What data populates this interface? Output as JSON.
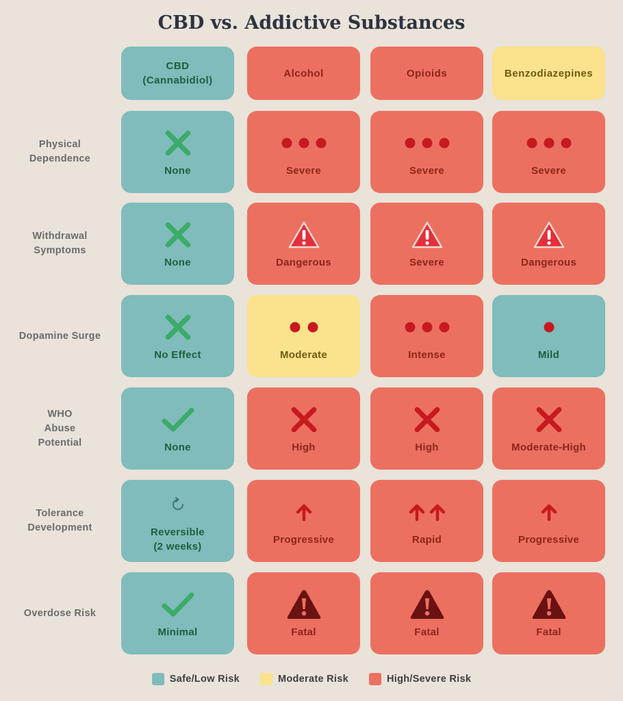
{
  "title": "CBD vs. Addictive Substances",
  "columns": [
    {
      "label": "CBD\n(Cannabidiol)",
      "risk": "safe"
    },
    {
      "label": "Alcohol",
      "risk": "high"
    },
    {
      "label": "Opioids",
      "risk": "high"
    },
    {
      "label": "Benzodiazepines",
      "risk": "mod"
    }
  ],
  "rows": [
    {
      "label": "Physical\nDependence",
      "cells": [
        {
          "icon": "x-icon",
          "text": "None",
          "risk": "safe"
        },
        {
          "icon": "dots-3-icon",
          "text": "Severe",
          "risk": "high"
        },
        {
          "icon": "dots-3-icon",
          "text": "Severe",
          "risk": "high"
        },
        {
          "icon": "dots-3-icon",
          "text": "Severe",
          "risk": "high"
        }
      ]
    },
    {
      "label": "Withdrawal\nSymptoms",
      "cells": [
        {
          "icon": "x-icon",
          "text": "None",
          "risk": "safe"
        },
        {
          "icon": "warning-icon",
          "text": "Dangerous",
          "risk": "high"
        },
        {
          "icon": "warning-icon",
          "text": "Severe",
          "risk": "high"
        },
        {
          "icon": "warning-icon",
          "text": "Dangerous",
          "risk": "high"
        }
      ]
    },
    {
      "label": "Dopamine Surge",
      "cells": [
        {
          "icon": "x-icon",
          "text": "No Effect",
          "risk": "safe"
        },
        {
          "icon": "dots-2-icon",
          "text": "Moderate",
          "risk": "mod"
        },
        {
          "icon": "dots-3-icon",
          "text": "Intense",
          "risk": "high"
        },
        {
          "icon": "dots-1-icon",
          "text": "Mild",
          "risk": "safe"
        }
      ]
    },
    {
      "label": "WHO\nAbuse\nPotential",
      "cells": [
        {
          "icon": "check-icon",
          "text": "None",
          "risk": "safe"
        },
        {
          "icon": "x-red-icon",
          "text": "High",
          "risk": "high"
        },
        {
          "icon": "x-red-icon",
          "text": "High",
          "risk": "high"
        },
        {
          "icon": "x-red-icon",
          "text": "Moderate-High",
          "risk": "high"
        }
      ]
    },
    {
      "label": "Tolerance\nDevelopment",
      "cells": [
        {
          "icon": "refresh-icon",
          "text": "Reversible\n(2 weeks)",
          "risk": "safe"
        },
        {
          "icon": "arrow-up-icon",
          "text": "Progressive",
          "risk": "high"
        },
        {
          "icon": "arrows-up-2-icon",
          "text": "Rapid",
          "risk": "high"
        },
        {
          "icon": "arrow-up-icon",
          "text": "Progressive",
          "risk": "high"
        }
      ]
    },
    {
      "label": "Overdose Risk",
      "cells": [
        {
          "icon": "check-icon",
          "text": "Minimal",
          "risk": "safe"
        },
        {
          "icon": "danger-icon",
          "text": "Fatal",
          "risk": "high"
        },
        {
          "icon": "danger-icon",
          "text": "Fatal",
          "risk": "high"
        },
        {
          "icon": "danger-icon",
          "text": "Fatal",
          "risk": "high"
        }
      ]
    }
  ],
  "legend": [
    {
      "label": "Safe/Low Risk",
      "color": "#7fbcbb"
    },
    {
      "label": "Moderate Risk",
      "color": "#fbe28c"
    },
    {
      "label": "High/Severe Risk",
      "color": "#ec7060"
    }
  ]
}
